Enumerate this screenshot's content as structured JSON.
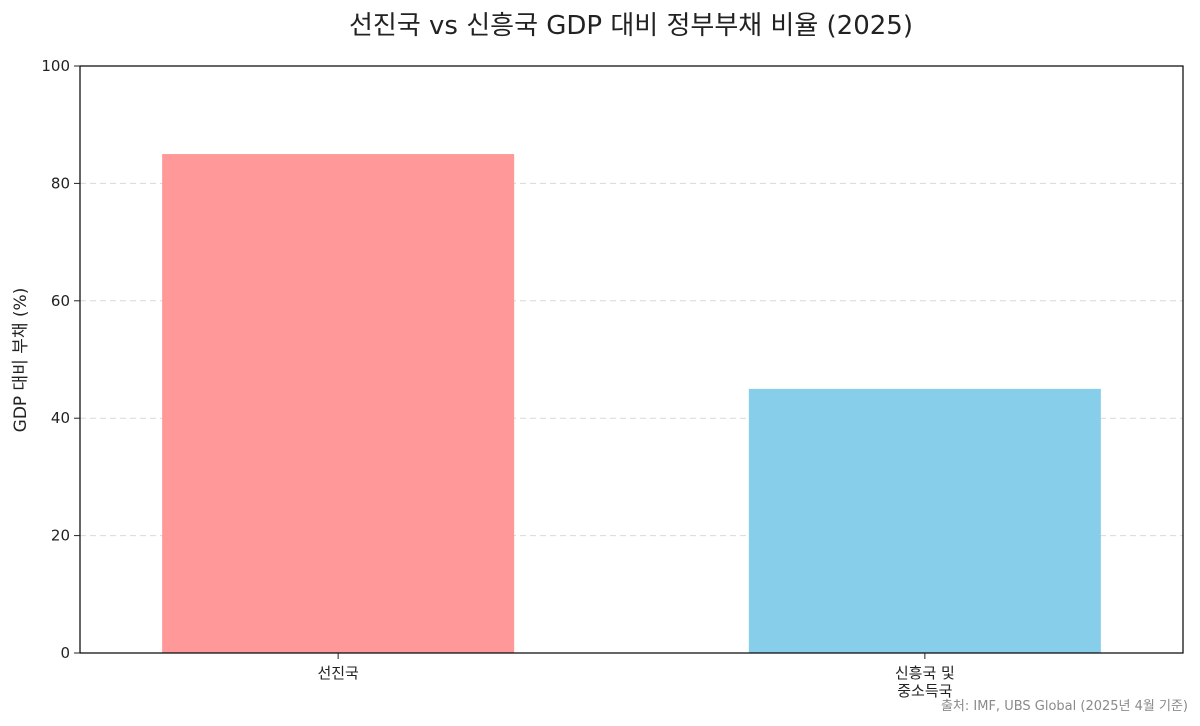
{
  "chart_data": {
    "type": "bar",
    "title": "선진국 vs 신흥국 GDP 대비 정부부채 비율 (2025)",
    "ylabel": "GDP 대비 부채 (%)",
    "xlabel": "",
    "ylim": [
      0,
      100
    ],
    "yticks": [
      0,
      20,
      40,
      60,
      80,
      100
    ],
    "grid": "horizontal dashed",
    "categories": [
      {
        "lines": [
          "선진국"
        ]
      },
      {
        "lines": [
          "신흥국 및",
          "중소득국"
        ]
      }
    ],
    "values": [
      85,
      45
    ],
    "colors": [
      "#ff9999",
      "#87ceeb"
    ],
    "source_note": "출처: IMF, UBS Global (2025년 4월 기준)"
  }
}
